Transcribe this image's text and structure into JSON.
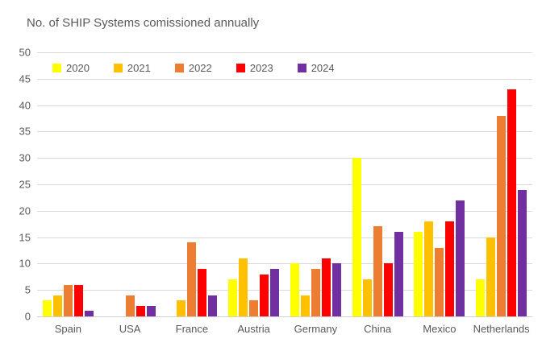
{
  "chart_data": {
    "type": "bar",
    "title": "No. of SHIP Systems comissioned annually",
    "categories": [
      "Spain",
      "USA",
      "France",
      "Austria",
      "Germany",
      "China",
      "Mexico",
      "Netherlands"
    ],
    "series": [
      {
        "name": "2020",
        "color": "#FFFF00",
        "values": [
          3,
          0,
          0,
          7,
          10,
          30,
          16,
          7
        ]
      },
      {
        "name": "2021",
        "color": "#FFC000",
        "values": [
          4,
          0,
          3,
          11,
          4,
          7,
          18,
          15
        ]
      },
      {
        "name": "2022",
        "color": "#ED7D31",
        "values": [
          6,
          4,
          14,
          3,
          9,
          17,
          13,
          38
        ]
      },
      {
        "name": "2023",
        "color": "#FF0000",
        "values": [
          6,
          2,
          9,
          8,
          11,
          10,
          18,
          43
        ]
      },
      {
        "name": "2024",
        "color": "#7030A0",
        "values": [
          1,
          2,
          4,
          9,
          10,
          16,
          22,
          24
        ]
      }
    ],
    "xlabel": "",
    "ylabel": "",
    "ylim": [
      0,
      50
    ],
    "ytick_step": 5,
    "yticks": [
      0,
      5,
      10,
      15,
      20,
      25,
      30,
      35,
      40,
      45,
      50
    ],
    "grid": true,
    "legend_position": "top-left-inside"
  },
  "colors": {
    "background": "#FFFFFF",
    "text": "#595959",
    "gridline": "#D9D9D9",
    "axis_line": "#D0D0D0"
  }
}
